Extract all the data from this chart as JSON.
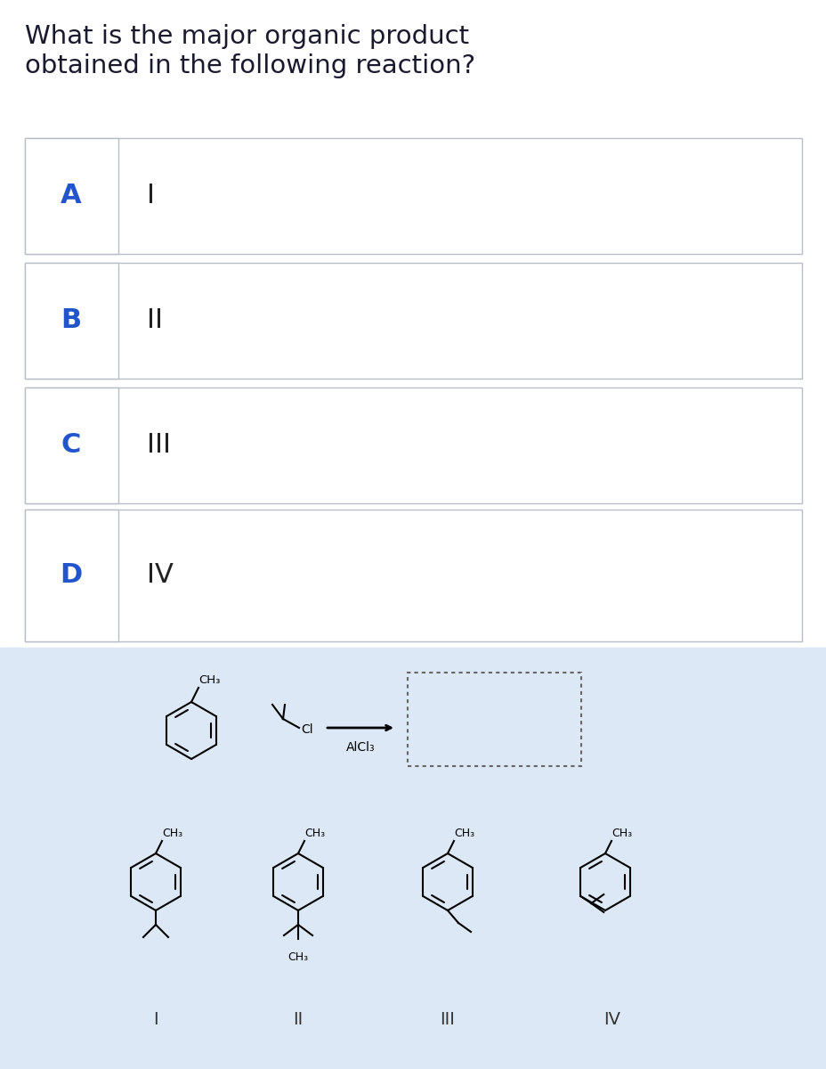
{
  "title_line1": "What is the major organic product",
  "title_line2": "obtained in the following reaction?",
  "title_color": "#1a1a2e",
  "title_fontsize": 21,
  "options": [
    "A",
    "B",
    "C",
    "D"
  ],
  "option_labels": [
    "I",
    "II",
    "III",
    "IV"
  ],
  "option_color": "#2255cc",
  "option_fontsize": 22,
  "label_fontsize": 22,
  "bg_white": "#ffffff",
  "bg_light": "#dce8f5",
  "border_color": "#b8bec8",
  "panel_bg": "#dce8f5"
}
